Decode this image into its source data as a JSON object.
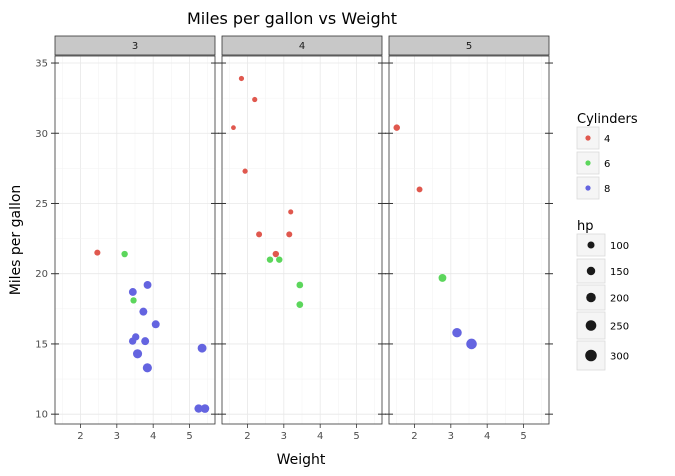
{
  "chart_data": {
    "type": "scatter",
    "title": "Miles per gallon vs Weight",
    "xlabel": "Weight",
    "ylabel": "Miles per gallon",
    "facet_by": "gear",
    "facets": [
      "3",
      "4",
      "5"
    ],
    "xlim": [
      1.3,
      5.7
    ],
    "ylim": [
      9.3,
      35.5
    ],
    "xticks": [
      2,
      3,
      4,
      5
    ],
    "yticks": [
      10,
      15,
      20,
      25,
      30,
      35
    ],
    "grid": true,
    "legend_position": "right",
    "color": {
      "title": "Cylinders",
      "levels": [
        {
          "label": "4",
          "color": "#e0584e"
        },
        {
          "label": "6",
          "color": "#5cd65c"
        },
        {
          "label": "8",
          "color": "#6464e0"
        }
      ]
    },
    "size": {
      "title": "hp",
      "levels": [
        {
          "label": "100",
          "value": 100
        },
        {
          "label": "150",
          "value": 150
        },
        {
          "label": "200",
          "value": 200
        },
        {
          "label": "250",
          "value": 250
        },
        {
          "label": "300",
          "value": 300
        }
      ]
    },
    "points": [
      {
        "facet": "3",
        "cyl": "4",
        "hp": 97,
        "x": 2.465,
        "y": 21.5
      },
      {
        "facet": "3",
        "cyl": "6",
        "hp": 110,
        "x": 3.215,
        "y": 21.4
      },
      {
        "facet": "3",
        "cyl": "6",
        "hp": 105,
        "x": 3.46,
        "y": 18.1
      },
      {
        "facet": "3",
        "cyl": "8",
        "hp": 175,
        "x": 3.44,
        "y": 18.7
      },
      {
        "facet": "3",
        "cyl": "8",
        "hp": 245,
        "x": 3.57,
        "y": 14.3
      },
      {
        "facet": "3",
        "cyl": "8",
        "hp": 180,
        "x": 4.07,
        "y": 16.4
      },
      {
        "facet": "3",
        "cyl": "8",
        "hp": 180,
        "x": 3.73,
        "y": 17.3
      },
      {
        "facet": "3",
        "cyl": "8",
        "hp": 180,
        "x": 3.78,
        "y": 15.2
      },
      {
        "facet": "3",
        "cyl": "8",
        "hp": 205,
        "x": 5.25,
        "y": 10.4
      },
      {
        "facet": "3",
        "cyl": "8",
        "hp": 215,
        "x": 5.424,
        "y": 10.4
      },
      {
        "facet": "3",
        "cyl": "8",
        "hp": 230,
        "x": 5.345,
        "y": 14.7
      },
      {
        "facet": "3",
        "cyl": "8",
        "hp": 150,
        "x": 3.52,
        "y": 15.5
      },
      {
        "facet": "3",
        "cyl": "8",
        "hp": 150,
        "x": 3.435,
        "y": 15.2
      },
      {
        "facet": "3",
        "cyl": "8",
        "hp": 245,
        "x": 3.84,
        "y": 13.3
      },
      {
        "facet": "3",
        "cyl": "8",
        "hp": 175,
        "x": 3.845,
        "y": 19.2
      },
      {
        "facet": "4",
        "cyl": "6",
        "hp": 110,
        "x": 2.62,
        "y": 21.0
      },
      {
        "facet": "4",
        "cyl": "6",
        "hp": 110,
        "x": 2.875,
        "y": 21.0
      },
      {
        "facet": "4",
        "cyl": "4",
        "hp": 93,
        "x": 2.32,
        "y": 22.8
      },
      {
        "facet": "4",
        "cyl": "4",
        "hp": 62,
        "x": 3.19,
        "y": 24.4
      },
      {
        "facet": "4",
        "cyl": "4",
        "hp": 95,
        "x": 3.15,
        "y": 22.8
      },
      {
        "facet": "4",
        "cyl": "6",
        "hp": 123,
        "x": 3.44,
        "y": 19.2
      },
      {
        "facet": "4",
        "cyl": "6",
        "hp": 123,
        "x": 3.44,
        "y": 17.8
      },
      {
        "facet": "4",
        "cyl": "4",
        "hp": 66,
        "x": 2.2,
        "y": 32.4
      },
      {
        "facet": "4",
        "cyl": "4",
        "hp": 52,
        "x": 1.615,
        "y": 30.4
      },
      {
        "facet": "4",
        "cyl": "4",
        "hp": 65,
        "x": 1.835,
        "y": 33.9
      },
      {
        "facet": "4",
        "cyl": "4",
        "hp": 66,
        "x": 1.935,
        "y": 27.3
      },
      {
        "facet": "4",
        "cyl": "4",
        "hp": 109,
        "x": 2.78,
        "y": 21.4
      },
      {
        "facet": "5",
        "cyl": "4",
        "hp": 91,
        "x": 2.14,
        "y": 26.0
      },
      {
        "facet": "5",
        "cyl": "4",
        "hp": 113,
        "x": 1.513,
        "y": 30.4
      },
      {
        "facet": "5",
        "cyl": "8",
        "hp": 264,
        "x": 3.17,
        "y": 15.8
      },
      {
        "facet": "5",
        "cyl": "6",
        "hp": 175,
        "x": 2.77,
        "y": 19.7
      },
      {
        "facet": "5",
        "cyl": "8",
        "hp": 335,
        "x": 3.57,
        "y": 15.0
      }
    ]
  }
}
